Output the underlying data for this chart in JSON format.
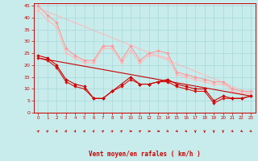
{
  "xlabel": "Vent moyen/en rafales ( km/h )",
  "background_color": "#c8ecec",
  "grid_color": "#a8d8d8",
  "axis_color": "#cc0000",
  "label_color": "#cc0000",
  "xlim": [
    -0.5,
    23.5
  ],
  "ylim": [
    0,
    46
  ],
  "yticks": [
    0,
    5,
    10,
    15,
    20,
    25,
    30,
    35,
    40,
    45
  ],
  "xticks": [
    0,
    1,
    2,
    3,
    4,
    5,
    6,
    7,
    8,
    9,
    10,
    11,
    12,
    13,
    14,
    15,
    16,
    17,
    18,
    19,
    20,
    21,
    22,
    23
  ],
  "line_light1": {
    "x": [
      0,
      1,
      2,
      3,
      4,
      5,
      6,
      7,
      8,
      9,
      10,
      11,
      12,
      13,
      14,
      15,
      16,
      17,
      18,
      19,
      20,
      21,
      22,
      23
    ],
    "y": [
      45,
      41,
      38,
      27,
      24,
      22,
      22,
      28,
      28,
      22,
      28,
      22,
      25,
      26,
      25,
      17,
      16,
      15,
      14,
      13,
      13,
      10,
      9,
      9
    ],
    "color": "#ff9999",
    "marker": "D",
    "markersize": 2.0,
    "linewidth": 0.8
  },
  "line_light2": {
    "x": [
      0,
      1,
      2,
      3,
      4,
      5,
      6,
      7,
      8,
      9,
      10,
      11,
      12,
      13,
      14,
      15,
      16,
      17,
      18,
      19,
      20,
      21,
      22,
      23
    ],
    "y": [
      43,
      39,
      36,
      25,
      23,
      21,
      21,
      27,
      27,
      21,
      26,
      21,
      24,
      24,
      23,
      16,
      15,
      14,
      13,
      12,
      12,
      9,
      8,
      8
    ],
    "color": "#ffbbbb",
    "marker": "D",
    "markersize": 2.0,
    "linewidth": 0.8
  },
  "line_trend_light": {
    "x": [
      0,
      23
    ],
    "y": [
      44,
      8
    ],
    "color": "#ffbbbb",
    "linewidth": 0.8,
    "linestyle": "-"
  },
  "line_dark1": {
    "x": [
      0,
      1,
      2,
      3,
      4,
      5,
      6,
      7,
      8,
      9,
      10,
      11,
      12,
      13,
      14,
      15,
      16,
      17,
      18,
      19,
      20,
      21,
      22,
      23
    ],
    "y": [
      24,
      23,
      20,
      14,
      12,
      11,
      6,
      6,
      9,
      12,
      15,
      12,
      12,
      13,
      14,
      12,
      11,
      10,
      10,
      5,
      7,
      6,
      6,
      7
    ],
    "color": "#cc0000",
    "marker": "D",
    "markersize": 2.0,
    "linewidth": 0.8
  },
  "line_dark2": {
    "x": [
      0,
      1,
      2,
      3,
      4,
      5,
      6,
      7,
      8,
      9,
      10,
      11,
      12,
      13,
      14,
      15,
      16,
      17,
      18,
      19,
      20,
      21,
      22,
      23
    ],
    "y": [
      23,
      22,
      19,
      13,
      11,
      10,
      6,
      6,
      9,
      11,
      14,
      12,
      12,
      13,
      13,
      11,
      10,
      9,
      9,
      4,
      6,
      6,
      6,
      7
    ],
    "color": "#dd1111",
    "marker": "D",
    "markersize": 2.0,
    "linewidth": 0.8
  },
  "line_trend_dark": {
    "x": [
      0,
      23
    ],
    "y": [
      23,
      7
    ],
    "color": "#cc0000",
    "linewidth": 0.8,
    "linestyle": "-"
  },
  "arrows_angles_deg": [
    45,
    45,
    60,
    60,
    60,
    60,
    60,
    45,
    45,
    45,
    0,
    45,
    0,
    0,
    315,
    315,
    315,
    270,
    270,
    270,
    270,
    315,
    315,
    315
  ]
}
